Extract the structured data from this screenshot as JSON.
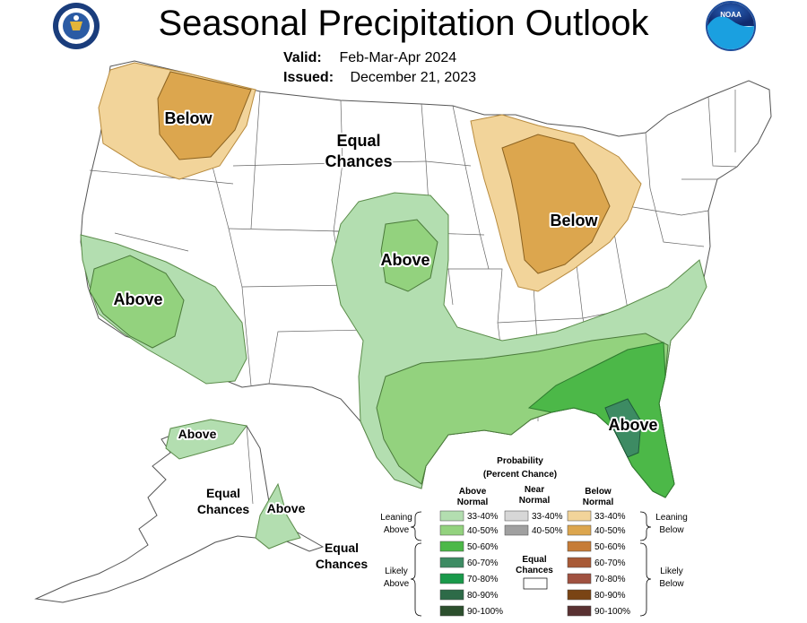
{
  "header": {
    "title": "Seasonal Precipitation Outlook",
    "valid_label": "Valid:",
    "valid_value": "Feb-Mar-Apr 2024",
    "issued_label": "Issued:",
    "issued_value": "December 21, 2023"
  },
  "logos": {
    "left": "department-of-commerce-seal",
    "right_text": "NOAA"
  },
  "map_labels": {
    "nw_below": "Below",
    "central_equal_1": "Equal",
    "central_equal_2": "Chances",
    "plains_above": "Above",
    "great_lakes_below": "Below",
    "west_above": "Above",
    "southeast_above": "Above",
    "alaska_north_above": "Above",
    "alaska_equal_1": "Equal",
    "alaska_equal_2": "Chances",
    "alaska_south_above": "Above",
    "panhandle_equal_1": "Equal",
    "panhandle_equal_2": "Chances"
  },
  "legend": {
    "title_1": "Probability",
    "title_2": "(Percent Chance)",
    "col_above_1": "Above",
    "col_above_2": "Normal",
    "col_near_1": "Near",
    "col_near_2": "Normal",
    "col_below_1": "Below",
    "col_below_2": "Normal",
    "leaning_above_1": "Leaning",
    "leaning_above_2": "Above",
    "leaning_below_1": "Leaning",
    "leaning_below_2": "Below",
    "likely_above_1": "Likely",
    "likely_above_2": "Above",
    "likely_below_1": "Likely",
    "likely_below_2": "Below",
    "equal_1": "Equal",
    "equal_2": "Chances",
    "above_rows": [
      "33-40%",
      "40-50%",
      "50-60%",
      "60-70%",
      "70-80%",
      "80-90%",
      "90-100%"
    ],
    "near_rows": [
      "33-40%",
      "40-50%"
    ],
    "below_rows": [
      "33-40%",
      "40-50%",
      "50-60%",
      "60-70%",
      "70-80%",
      "80-90%",
      "90-100%"
    ],
    "above_colors": [
      "#b3deb0",
      "#93d27e",
      "#4cb848",
      "#3d8b63",
      "#19994a",
      "#2d6b48",
      "#2c4f2d"
    ],
    "near_colors": [
      "#d7d7d7",
      "#a0a0a0"
    ],
    "below_colors": [
      "#f2d49a",
      "#dca64e",
      "#c67c37",
      "#a85a36",
      "#a05140",
      "#7a4414",
      "#593132"
    ]
  }
}
